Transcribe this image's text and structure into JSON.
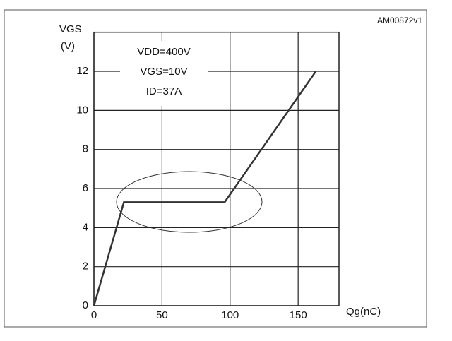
{
  "chart_data": {
    "type": "line",
    "code": "AM00872v1",
    "y_label": "VGS",
    "y_unit": "(V)",
    "x_label": "Qg(nC)",
    "annotations": [
      "VDD=400V",
      "VGS=10V",
      "ID=37A"
    ],
    "x": [
      0,
      22,
      96,
      163
    ],
    "values": [
      0,
      5.3,
      5.3,
      12
    ],
    "color": "#333333",
    "xlim": [
      0,
      180
    ],
    "xticks": [
      0,
      50,
      100,
      150
    ],
    "ylim": [
      0,
      14
    ],
    "yticks": [
      0,
      2,
      4,
      6,
      8,
      10,
      12
    ],
    "grid": true
  }
}
